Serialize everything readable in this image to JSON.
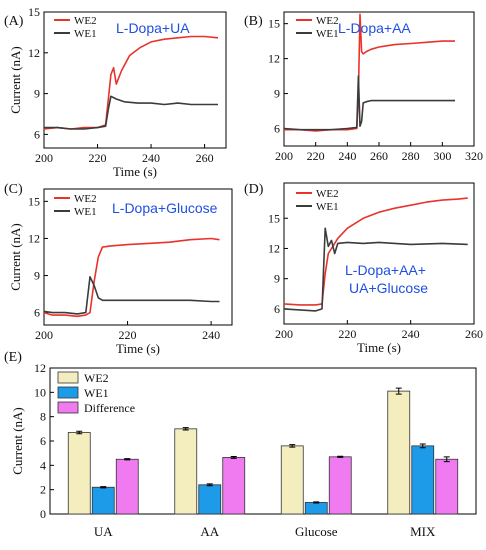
{
  "colors": {
    "we2": "#e8332b",
    "we1": "#3b3b3b",
    "annotation": "#1f4fe0",
    "bar_we2": "#f4eebe",
    "bar_we1": "#1e9be8",
    "bar_diff": "#f07af0"
  },
  "chart_data": [
    {
      "panel": "(A)",
      "type": "line",
      "annotation": "L-Dopa+UA",
      "xlabel": "Time (s)",
      "ylabel": "Current (nA)",
      "xlim": [
        200,
        268
      ],
      "ylim": [
        5,
        15
      ],
      "xticks": [
        "200",
        "220",
        "240",
        "260"
      ],
      "yticks": [
        "6",
        "9",
        "12",
        "15"
      ],
      "legend": [
        "WE2",
        "WE1"
      ],
      "series": [
        {
          "name": "WE2",
          "color": "#e8332b",
          "x": [
            200,
            205,
            210,
            215,
            220,
            223,
            224,
            225,
            226,
            227,
            229,
            232,
            236,
            240,
            245,
            250,
            255,
            260,
            265
          ],
          "y": [
            6.4,
            6.5,
            6.4,
            6.5,
            6.5,
            6.7,
            8.5,
            10.4,
            10.9,
            9.7,
            10.7,
            11.8,
            12.4,
            12.8,
            13.0,
            13.1,
            13.2,
            13.2,
            13.1
          ]
        },
        {
          "name": "WE1",
          "color": "#3b3b3b",
          "x": [
            200,
            205,
            210,
            215,
            220,
            223,
            224,
            225,
            227,
            230,
            235,
            240,
            245,
            250,
            255,
            260,
            265
          ],
          "y": [
            6.5,
            6.5,
            6.4,
            6.4,
            6.5,
            6.6,
            7.8,
            8.8,
            8.6,
            8.4,
            8.3,
            8.3,
            8.2,
            8.3,
            8.2,
            8.2,
            8.2
          ]
        }
      ]
    },
    {
      "panel": "(B)",
      "type": "line",
      "annotation": "L-Dopa+AA",
      "xlabel": "",
      "ylabel": "",
      "xlim": [
        200,
        320
      ],
      "ylim": [
        4.5,
        16
      ],
      "xticks": [
        "200",
        "220",
        "240",
        "260",
        "280",
        "300",
        "320"
      ],
      "yticks": [
        "6",
        "9",
        "12",
        "15"
      ],
      "legend": [
        "WE2",
        "WE1"
      ],
      "series": [
        {
          "name": "WE2",
          "color": "#e8332b",
          "x": [
            200,
            210,
            220,
            230,
            240,
            246,
            247,
            248,
            249,
            250,
            252,
            255,
            260,
            270,
            280,
            290,
            300,
            308
          ],
          "y": [
            5.9,
            5.9,
            5.8,
            5.9,
            5.9,
            6.0,
            9.0,
            15.8,
            12.6,
            12.4,
            12.6,
            12.8,
            13.0,
            13.2,
            13.3,
            13.4,
            13.5,
            13.5
          ]
        },
        {
          "name": "WE1",
          "color": "#3b3b3b",
          "x": [
            200,
            210,
            220,
            230,
            240,
            246,
            247,
            248,
            249,
            250,
            252,
            255,
            260,
            270,
            280,
            290,
            300,
            308
          ],
          "y": [
            6.0,
            5.9,
            5.9,
            5.9,
            6.0,
            6.1,
            10.5,
            6.2,
            6.6,
            8.2,
            8.3,
            8.4,
            8.4,
            8.4,
            8.4,
            8.4,
            8.4,
            8.4
          ]
        }
      ]
    },
    {
      "panel": "(C)",
      "type": "line",
      "annotation": "L-Dopa+Glucose",
      "xlabel": "Time (s)",
      "ylabel": "Current (nA)",
      "xlim": [
        200,
        245
      ],
      "ylim": [
        5,
        16
      ],
      "xticks": [
        "200",
        "220",
        "240"
      ],
      "yticks": [
        "6",
        "9",
        "12",
        "15"
      ],
      "legend": [
        "WE2",
        "WE1"
      ],
      "series": [
        {
          "name": "WE2",
          "color": "#e8332b",
          "x": [
            200,
            202,
            205,
            208,
            210,
            211,
            212,
            213,
            214,
            216,
            220,
            225,
            230,
            235,
            240,
            242
          ],
          "y": [
            6.0,
            5.8,
            5.8,
            5.7,
            5.8,
            6.0,
            8.5,
            10.5,
            11.3,
            11.4,
            11.5,
            11.6,
            11.7,
            11.9,
            12.0,
            11.9
          ]
        },
        {
          "name": "WE1",
          "color": "#3b3b3b",
          "x": [
            200,
            202,
            205,
            208,
            210,
            211,
            212,
            213,
            214,
            216,
            220,
            225,
            230,
            235,
            240,
            242
          ],
          "y": [
            6.1,
            6.0,
            6.0,
            5.9,
            6.0,
            8.9,
            8.2,
            7.2,
            7.0,
            7.0,
            7.0,
            7.0,
            7.0,
            7.0,
            6.9,
            6.9
          ]
        }
      ]
    },
    {
      "panel": "(D)",
      "type": "line",
      "annotation_lines": [
        "L-Dopa+AA+",
        "UA+Glucose"
      ],
      "xlabel": "Time (s)",
      "ylabel": "",
      "xlim": [
        200,
        260
      ],
      "ylim": [
        4.5,
        18.5
      ],
      "xticks": [
        "200",
        "220",
        "240",
        "260"
      ],
      "yticks": [
        "6",
        "9",
        "12",
        "15"
      ],
      "legend": [
        "WE2",
        "WE1"
      ],
      "series": [
        {
          "name": "WE2",
          "color": "#e8332b",
          "x": [
            200,
            205,
            210,
            212,
            213,
            214,
            215,
            217,
            220,
            225,
            230,
            235,
            240,
            245,
            250,
            255,
            258
          ],
          "y": [
            6.5,
            6.4,
            6.4,
            6.5,
            9.5,
            11.5,
            12.0,
            13.0,
            14.0,
            15.0,
            15.6,
            16.0,
            16.3,
            16.6,
            16.8,
            16.9,
            17.0
          ]
        },
        {
          "name": "WE1",
          "color": "#3b3b3b",
          "x": [
            200,
            205,
            210,
            212,
            213,
            214,
            215,
            216,
            217,
            220,
            225,
            230,
            240,
            250,
            258
          ],
          "y": [
            6.0,
            5.9,
            5.8,
            6.0,
            14.0,
            12.2,
            12.8,
            11.5,
            12.5,
            12.6,
            12.5,
            12.6,
            12.4,
            12.5,
            12.4
          ]
        }
      ]
    },
    {
      "panel": "(E)",
      "type": "bar",
      "ylabel": "Current (nA)",
      "ylim": [
        0,
        12
      ],
      "yticks": [
        "0",
        "2",
        "4",
        "6",
        "8",
        "10",
        "12"
      ],
      "categories": [
        "UA",
        "AA",
        "Glucose",
        "MIX"
      ],
      "legend": [
        "WE2",
        "WE1",
        "Difference"
      ],
      "series": [
        {
          "name": "WE2",
          "color": "#f4eebe",
          "values": [
            6.7,
            7.0,
            5.6,
            10.1
          ],
          "errors": [
            0.1,
            0.1,
            0.1,
            0.25
          ]
        },
        {
          "name": "WE1",
          "color": "#1e9be8",
          "values": [
            2.2,
            2.4,
            0.95,
            5.6
          ],
          "errors": [
            0.05,
            0.08,
            0.05,
            0.15
          ]
        },
        {
          "name": "Difference",
          "color": "#f07af0",
          "values": [
            4.5,
            4.65,
            4.7,
            4.5
          ],
          "errors": [
            0.05,
            0.08,
            0.05,
            0.2
          ]
        }
      ]
    }
  ]
}
